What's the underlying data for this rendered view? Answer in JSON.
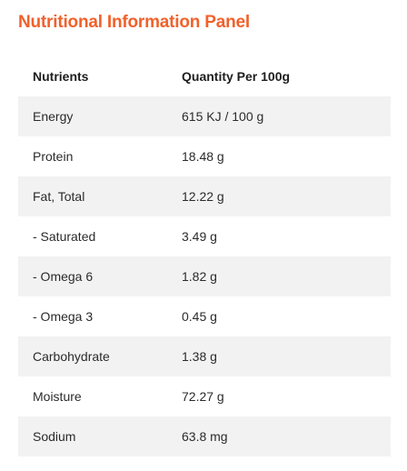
{
  "title": "Nutritional Information Panel",
  "header": {
    "col1": "Nutrients",
    "col2": "Quantity Per 100g"
  },
  "rows": [
    {
      "nutrient": "Energy",
      "quantity": "615 KJ / 100 g"
    },
    {
      "nutrient": "Protein",
      "quantity": "18.48 g"
    },
    {
      "nutrient": "Fat, Total",
      "quantity": "12.22 g"
    },
    {
      "nutrient": "- Saturated",
      "quantity": "3.49 g"
    },
    {
      "nutrient": "- Omega 6",
      "quantity": "1.82 g"
    },
    {
      "nutrient": "- Omega 3",
      "quantity": "0.45 g"
    },
    {
      "nutrient": "Carbohydrate",
      "quantity": "1.38 g"
    },
    {
      "nutrient": "Moisture",
      "quantity": "72.27 g"
    },
    {
      "nutrient": "Sodium",
      "quantity": "63.8 mg"
    }
  ],
  "colors": {
    "title": "#f2612b",
    "row_shade": "#f2f2f2"
  }
}
